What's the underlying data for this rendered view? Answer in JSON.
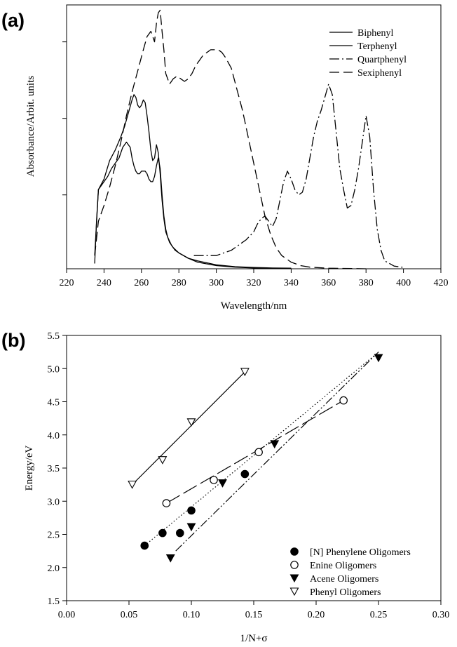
{
  "chart_data": [
    {
      "panel": "(a)",
      "type": "line",
      "xlabel": "Wavelength/nm",
      "ylabel": "Absorbance/Arbit. units",
      "xlim": [
        220,
        420
      ],
      "x_ticks": [
        "220",
        "240",
        "260",
        "280",
        "300",
        "320",
        "340",
        "360",
        "380",
        "400",
        "420"
      ],
      "ylim": [
        0,
        1
      ],
      "y_tick_values": [
        0.28,
        0.57,
        0.86
      ],
      "y_tick_labels_shown": false,
      "legend_position": "top-right",
      "series": [
        {
          "name": "Biphenyl",
          "style": "solid",
          "x": [
            235,
            236,
            237,
            238,
            240,
            242,
            244,
            246,
            248,
            250,
            252,
            254,
            255,
            256,
            257,
            258,
            259,
            260,
            261,
            262,
            263,
            264,
            265,
            266,
            267,
            268,
            269,
            270,
            271,
            272,
            273,
            274,
            276,
            278,
            280,
            285,
            290,
            300,
            310,
            320,
            330,
            340
          ],
          "y": [
            0.02,
            0.18,
            0.3,
            0.31,
            0.33,
            0.35,
            0.38,
            0.4,
            0.42,
            0.46,
            0.48,
            0.46,
            0.42,
            0.39,
            0.37,
            0.36,
            0.36,
            0.37,
            0.37,
            0.37,
            0.36,
            0.34,
            0.33,
            0.33,
            0.35,
            0.39,
            0.42,
            0.38,
            0.28,
            0.2,
            0.15,
            0.12,
            0.09,
            0.07,
            0.06,
            0.04,
            0.03,
            0.015,
            0.008,
            0.005,
            0.003,
            0.002
          ]
        },
        {
          "name": "Terphenyl",
          "style": "solid",
          "x": [
            235,
            237,
            240,
            243,
            246,
            249,
            251,
            253,
            255,
            256,
            257,
            258,
            259,
            260,
            261,
            262,
            263,
            264,
            265,
            266,
            267,
            268,
            269,
            270,
            271,
            272,
            273,
            275,
            277,
            280,
            285,
            290,
            300,
            310,
            320,
            330,
            340
          ],
          "y": [
            0.05,
            0.3,
            0.34,
            0.41,
            0.45,
            0.5,
            0.54,
            0.59,
            0.64,
            0.66,
            0.65,
            0.62,
            0.61,
            0.62,
            0.64,
            0.63,
            0.58,
            0.52,
            0.45,
            0.41,
            0.42,
            0.47,
            0.44,
            0.36,
            0.26,
            0.19,
            0.14,
            0.1,
            0.08,
            0.06,
            0.04,
            0.025,
            0.012,
            0.006,
            0.003,
            0.002,
            0.001
          ]
        },
        {
          "name": "Quartphenyl",
          "style": "dashdot",
          "x": [
            288,
            292,
            296,
            300,
            304,
            308,
            312,
            316,
            320,
            322,
            324,
            326,
            328,
            330,
            332,
            334,
            336,
            338,
            340,
            342,
            344,
            346,
            348,
            350,
            352,
            354,
            356,
            358,
            360,
            362,
            364,
            366,
            368,
            370,
            372,
            374,
            376,
            378,
            380,
            382,
            384,
            386,
            388,
            390,
            395,
            400
          ],
          "y": [
            0.05,
            0.05,
            0.05,
            0.05,
            0.06,
            0.07,
            0.09,
            0.11,
            0.14,
            0.17,
            0.19,
            0.2,
            0.18,
            0.16,
            0.19,
            0.26,
            0.33,
            0.37,
            0.34,
            0.3,
            0.28,
            0.29,
            0.34,
            0.42,
            0.5,
            0.56,
            0.6,
            0.65,
            0.7,
            0.66,
            0.52,
            0.38,
            0.3,
            0.23,
            0.24,
            0.3,
            0.38,
            0.48,
            0.58,
            0.5,
            0.3,
            0.15,
            0.07,
            0.03,
            0.01,
            0.005
          ]
        },
        {
          "name": "Sexiphenyl",
          "style": "dashed",
          "x": [
            235,
            237,
            240,
            243,
            246,
            249,
            252,
            255,
            258,
            261,
            263,
            265,
            267,
            268,
            269,
            270,
            271,
            272,
            273,
            275,
            277,
            279,
            281,
            283,
            285,
            287,
            289,
            291,
            293,
            295,
            297,
            299,
            301,
            303,
            305,
            308,
            311,
            314,
            317,
            320,
            323,
            326,
            329,
            332,
            335,
            340,
            345,
            350,
            360,
            380
          ],
          "y": [
            0.05,
            0.18,
            0.24,
            0.31,
            0.39,
            0.48,
            0.58,
            0.67,
            0.75,
            0.83,
            0.88,
            0.9,
            0.86,
            0.93,
            0.97,
            0.98,
            0.9,
            0.83,
            0.74,
            0.7,
            0.72,
            0.73,
            0.72,
            0.71,
            0.72,
            0.74,
            0.77,
            0.79,
            0.81,
            0.82,
            0.83,
            0.83,
            0.83,
            0.82,
            0.8,
            0.76,
            0.68,
            0.6,
            0.5,
            0.4,
            0.3,
            0.2,
            0.13,
            0.08,
            0.05,
            0.025,
            0.012,
            0.006,
            0.002,
            0.0
          ]
        }
      ]
    },
    {
      "panel": "(b)",
      "type": "scatter",
      "xlabel": "1/N+σ",
      "ylabel": "Energy/eV",
      "xlim": [
        0.0,
        0.3
      ],
      "ylim": [
        1.5,
        5.5
      ],
      "x_ticks": [
        "0.00",
        "0.05",
        "0.10",
        "0.15",
        "0.20",
        "0.25",
        "0.30"
      ],
      "y_ticks": [
        "1.5",
        "2.0",
        "2.5",
        "3.0",
        "3.5",
        "4.0",
        "4.5",
        "5.0",
        "5.5"
      ],
      "legend_position": "bottom-right",
      "series": [
        {
          "name": "[N] Phenylene Oligomers",
          "marker": "filled-circle",
          "x": [
            0.0625,
            0.0769,
            0.0909,
            0.1,
            0.1429
          ],
          "y": [
            2.33,
            2.52,
            2.52,
            2.86,
            3.41
          ],
          "fit_line": {
            "style": "dotted",
            "x": [
              0.0625,
              0.25
            ],
            "y": [
              2.33,
              5.25
            ]
          }
        },
        {
          "name": "Enine Oligomers",
          "marker": "open-circle",
          "x": [
            0.08,
            0.118,
            0.154,
            0.222
          ],
          "y": [
            2.97,
            3.32,
            3.74,
            4.52
          ],
          "fit_line": {
            "style": "long-dash",
            "x": [
              0.08,
              0.222
            ],
            "y": [
              2.97,
              4.52
            ]
          }
        },
        {
          "name": "Acene Oligomers",
          "marker": "filled-triangle-down",
          "x": [
            0.0833,
            0.1,
            0.125,
            0.1667,
            0.25
          ],
          "y": [
            2.14,
            2.61,
            3.27,
            3.86,
            5.16
          ],
          "fit_line": {
            "style": "dash-dot-dot",
            "x": [
              0.0875,
              0.25
            ],
            "y": [
              2.25,
              5.25
            ]
          }
        },
        {
          "name": "Phenyl Oligomers",
          "marker": "open-triangle-down",
          "x": [
            0.0526,
            0.0769,
            0.1,
            0.1429
          ],
          "y": [
            3.25,
            3.62,
            4.19,
            4.95
          ],
          "fit_line": {
            "style": "solid",
            "x": [
              0.0526,
              0.1429
            ],
            "y": [
              3.25,
              4.95
            ]
          }
        }
      ]
    }
  ]
}
